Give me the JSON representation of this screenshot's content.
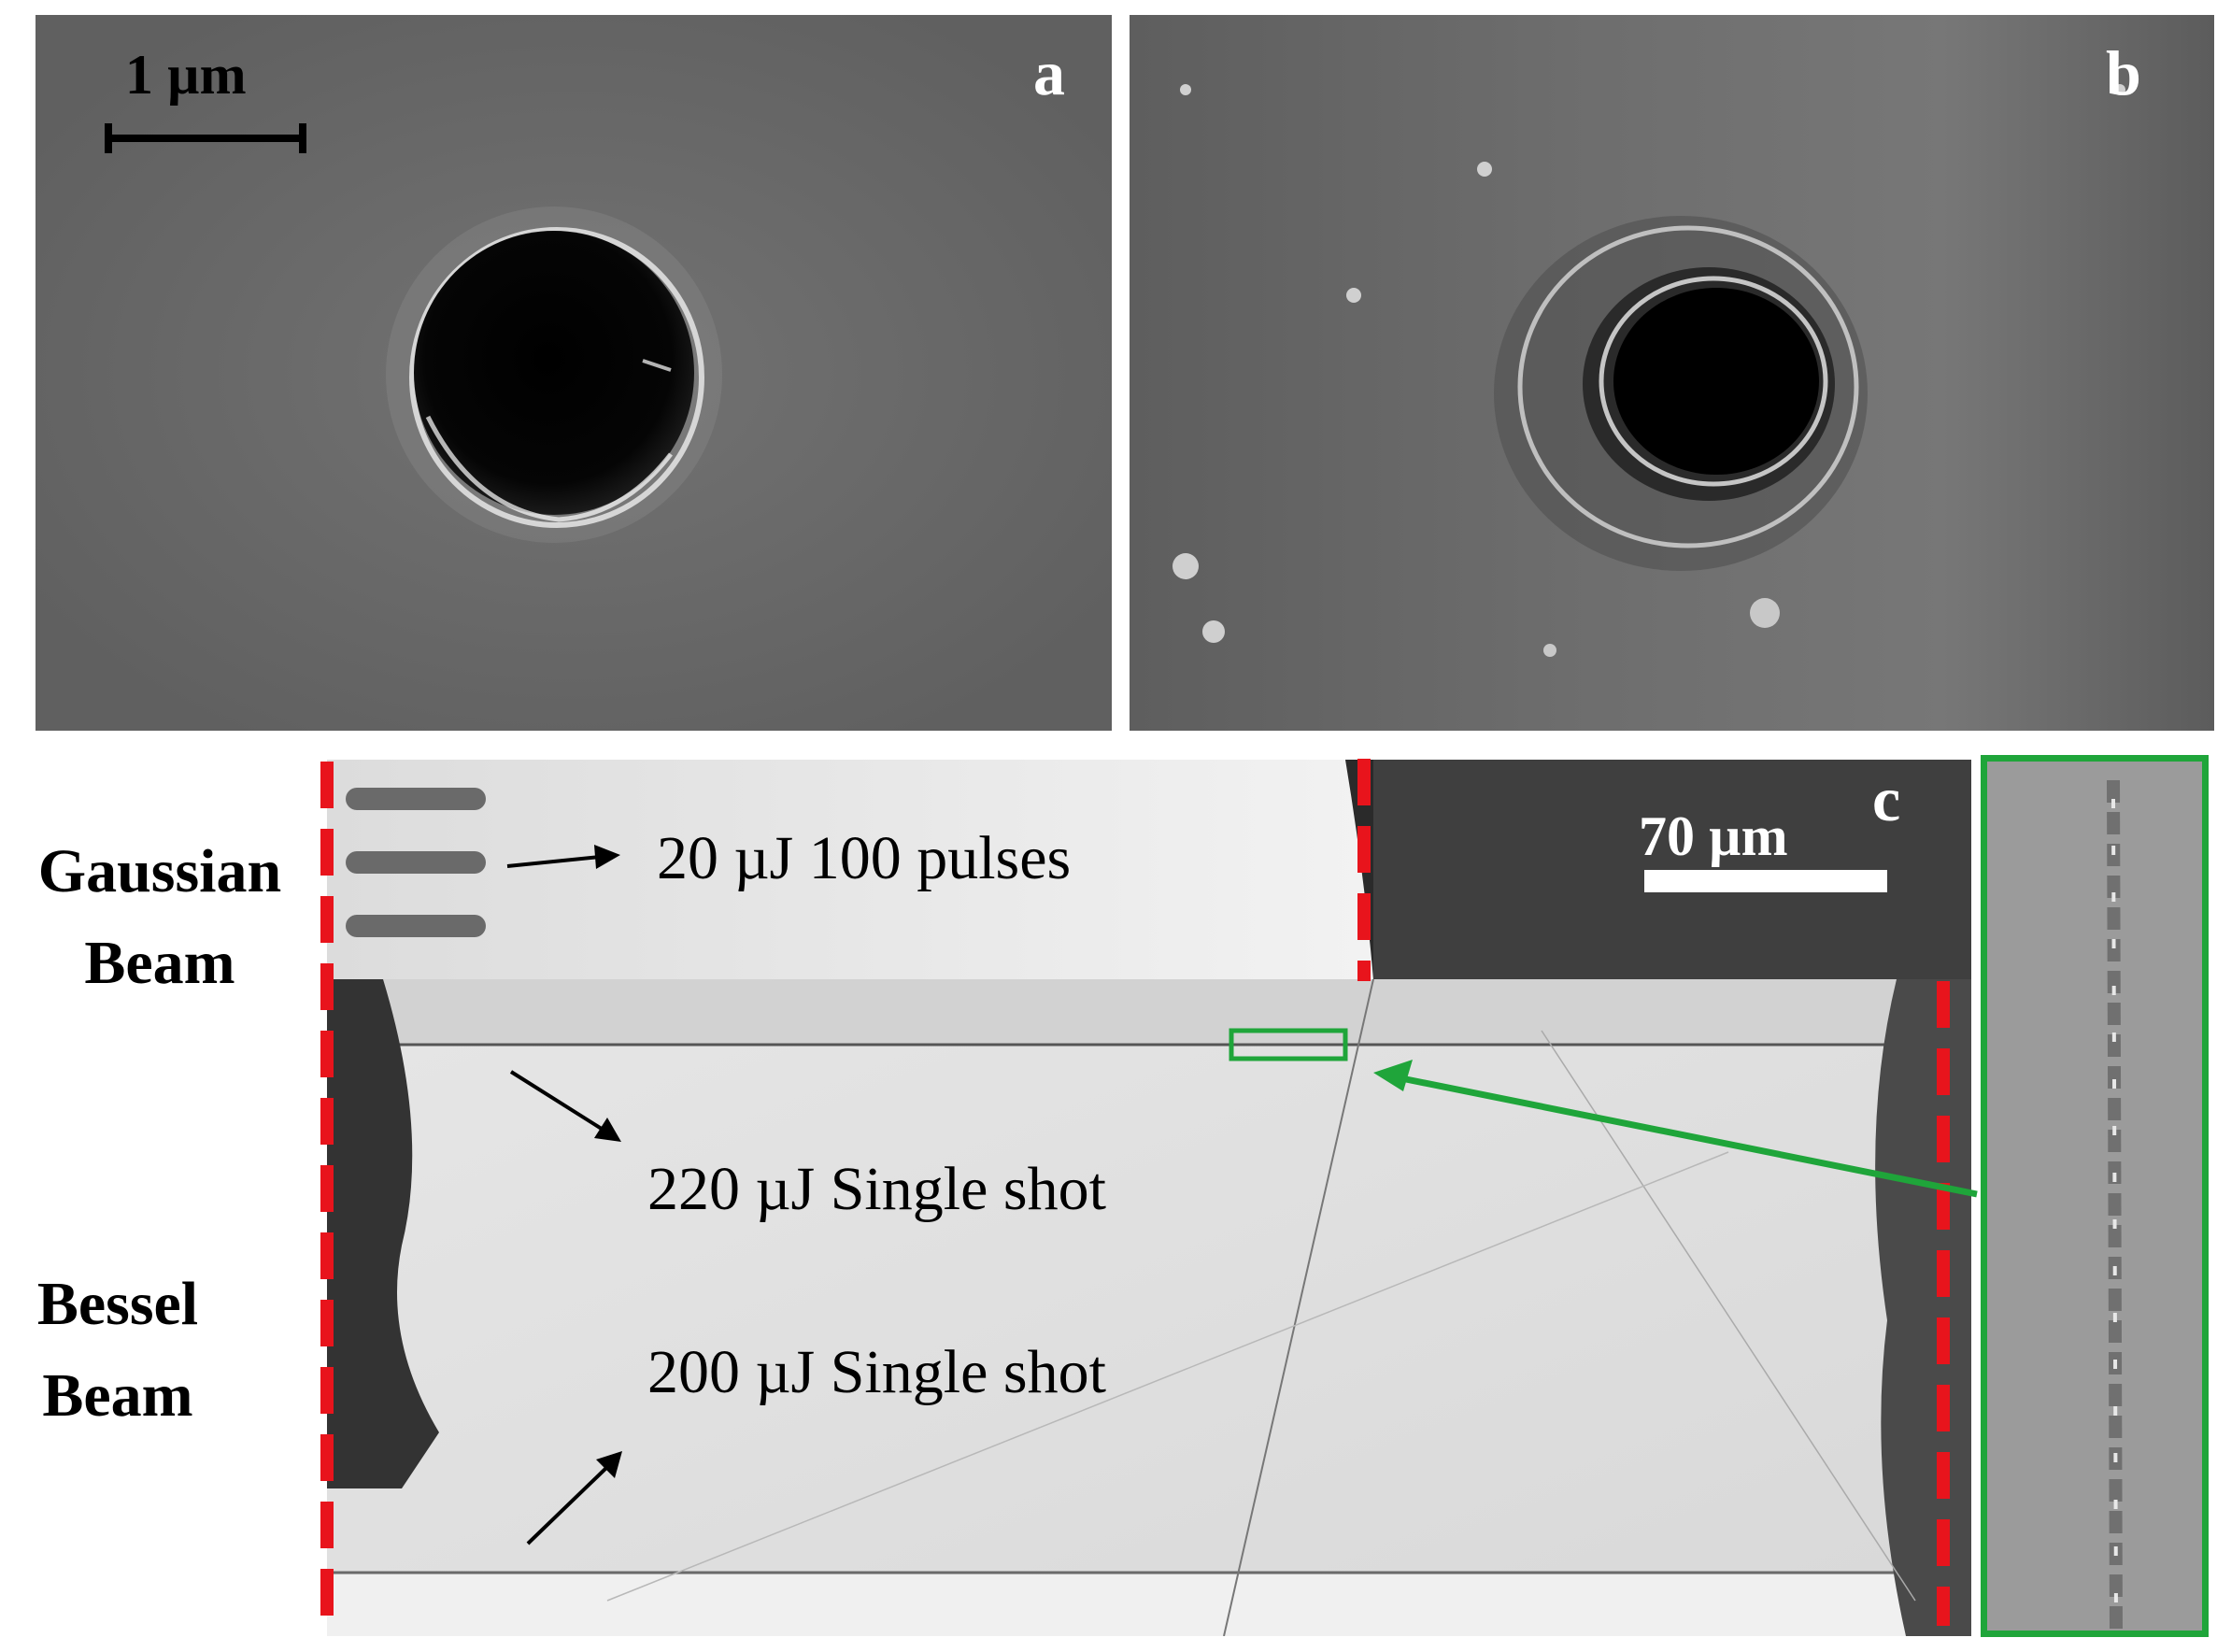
{
  "panels": {
    "a": {
      "letter": "a",
      "scale_bar": "1 µm"
    },
    "b": {
      "letter": "b"
    },
    "c": {
      "letter": "c",
      "scale_bar": "70 µm"
    }
  },
  "row_labels": {
    "gaussian": "Gaussian\nBeam",
    "bessel": "Bessel\nBeam"
  },
  "annotations": {
    "gaussian_pulses": "20 µJ 100 pulses",
    "bessel_220": "220 µJ Single shot",
    "bessel_200": "200 µJ Single shot"
  },
  "colors": {
    "boundary_dash": "#e8141c",
    "inset_highlight": "#1fa53a",
    "sem_background": "#6b6b6b",
    "optical_background": "#e2e2e2"
  }
}
